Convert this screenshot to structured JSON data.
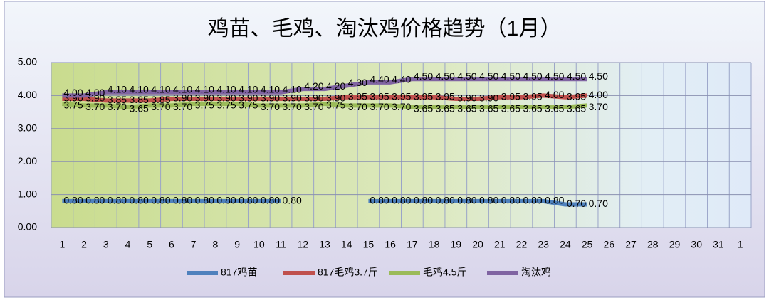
{
  "chart_data": {
    "type": "line",
    "title": "鸡苗、毛鸡、淘汰鸡价格趋势（1月）",
    "categories": [
      "1",
      "2",
      "3",
      "4",
      "5",
      "6",
      "7",
      "8",
      "9",
      "10",
      "11",
      "12",
      "13",
      "14",
      "15",
      "16",
      "17",
      "18",
      "19",
      "20",
      "21",
      "22",
      "23",
      "24",
      "25",
      "26",
      "27",
      "28",
      "29",
      "30",
      "31",
      "1"
    ],
    "ylim": [
      0,
      5
    ],
    "yticks": [
      {
        "value": 0,
        "label": "0.00"
      },
      {
        "value": 1,
        "label": "1.00"
      },
      {
        "value": 2,
        "label": "2.00"
      },
      {
        "value": 3,
        "label": "3.00"
      },
      {
        "value": 4,
        "label": "4.00"
      },
      {
        "value": 5,
        "label": "5.00"
      }
    ],
    "grid": true,
    "legend": "bottom",
    "series": [
      {
        "name": "817鸡苗",
        "color": "#4f81bd",
        "values": [
          0.8,
          0.8,
          0.8,
          0.8,
          0.8,
          0.8,
          0.8,
          0.8,
          0.8,
          0.8,
          0.8,
          null,
          null,
          null,
          0.8,
          0.8,
          0.8,
          0.8,
          0.8,
          0.8,
          0.8,
          0.8,
          0.8,
          0.7,
          0.7,
          null,
          null,
          null,
          null,
          null,
          null,
          null
        ],
        "value_labels": [
          "0.80",
          "0.80",
          "0.80",
          "0.80",
          "0.80",
          "0.80",
          "0.80",
          "0.80",
          "0.80",
          "0.80",
          "0.80",
          null,
          null,
          null,
          "0.80",
          "0.80",
          "0.80",
          "0.80",
          "0.80",
          "0.80",
          "0.80",
          "0.80",
          "0.80",
          "0.70",
          "0.70",
          null,
          null,
          null,
          null,
          null,
          null,
          null
        ]
      },
      {
        "name": "817毛鸡3.7斤",
        "color": "#c0504d",
        "values": [
          3.9,
          3.9,
          3.85,
          3.85,
          3.85,
          3.9,
          3.9,
          3.9,
          3.9,
          3.9,
          3.9,
          3.9,
          3.9,
          3.95,
          3.95,
          3.95,
          3.95,
          3.95,
          3.9,
          3.9,
          3.95,
          3.95,
          4.0,
          3.95,
          4.0,
          null,
          null,
          null,
          null,
          null,
          null,
          null
        ],
        "value_labels": [
          "3.90",
          "3.90",
          "3.85",
          "3.85",
          "3.85",
          "3.90",
          "3.90",
          "3.90",
          "3.90",
          "3.90",
          "3.90",
          "3.90",
          "3.90",
          "3.95",
          "3.95",
          "3.95",
          "3.95",
          "3.95",
          "3.90",
          "3.90",
          "3.95",
          "3.95",
          "4.00",
          "3.95",
          "4.00",
          null,
          null,
          null,
          null,
          null,
          null,
          null
        ]
      },
      {
        "name": "毛鸡4.5斤",
        "color": "#9bbb59",
        "values": [
          3.75,
          3.7,
          3.7,
          3.65,
          3.7,
          3.7,
          3.75,
          3.75,
          3.75,
          3.7,
          3.7,
          3.7,
          3.75,
          3.7,
          3.7,
          3.7,
          3.65,
          3.65,
          3.65,
          3.65,
          3.65,
          3.65,
          3.65,
          3.65,
          3.7,
          null,
          null,
          null,
          null,
          null,
          null,
          null
        ],
        "value_labels": [
          "3.75",
          "3.70",
          "3.70",
          "3.65",
          "3.70",
          "3.70",
          "3.75",
          "3.75",
          "3.75",
          "3.70",
          "3.70",
          "3.70",
          "3.75",
          "3.70",
          "3.70",
          "3.70",
          "3.65",
          "3.65",
          "3.65",
          "3.65",
          "3.65",
          "3.65",
          "3.65",
          "3.65",
          "3.70",
          null,
          null,
          null,
          null,
          null,
          null,
          null
        ]
      },
      {
        "name": "淘汰鸡",
        "color": "#8064a2",
        "values": [
          4.0,
          4.0,
          4.1,
          4.1,
          4.1,
          4.1,
          4.1,
          4.1,
          4.1,
          4.1,
          4.1,
          4.2,
          4.2,
          4.3,
          4.4,
          4.4,
          4.5,
          4.5,
          4.5,
          4.5,
          4.5,
          4.5,
          4.5,
          4.5,
          4.5,
          null,
          null,
          null,
          null,
          null,
          null,
          null
        ],
        "value_labels": [
          "4.00",
          "4.00",
          "4.10",
          "4.10",
          "4.10",
          "4.10",
          "4.10",
          "4.10",
          "4.10",
          "4.10",
          "4.10",
          "4.20",
          "4.20",
          "4.30",
          "4.40",
          "4.40",
          "4.50",
          "4.50",
          "4.50",
          "4.50",
          "4.50",
          "4.50",
          "4.50",
          "4.50",
          "4.50",
          null,
          null,
          null,
          null,
          null,
          null,
          null
        ]
      }
    ]
  }
}
